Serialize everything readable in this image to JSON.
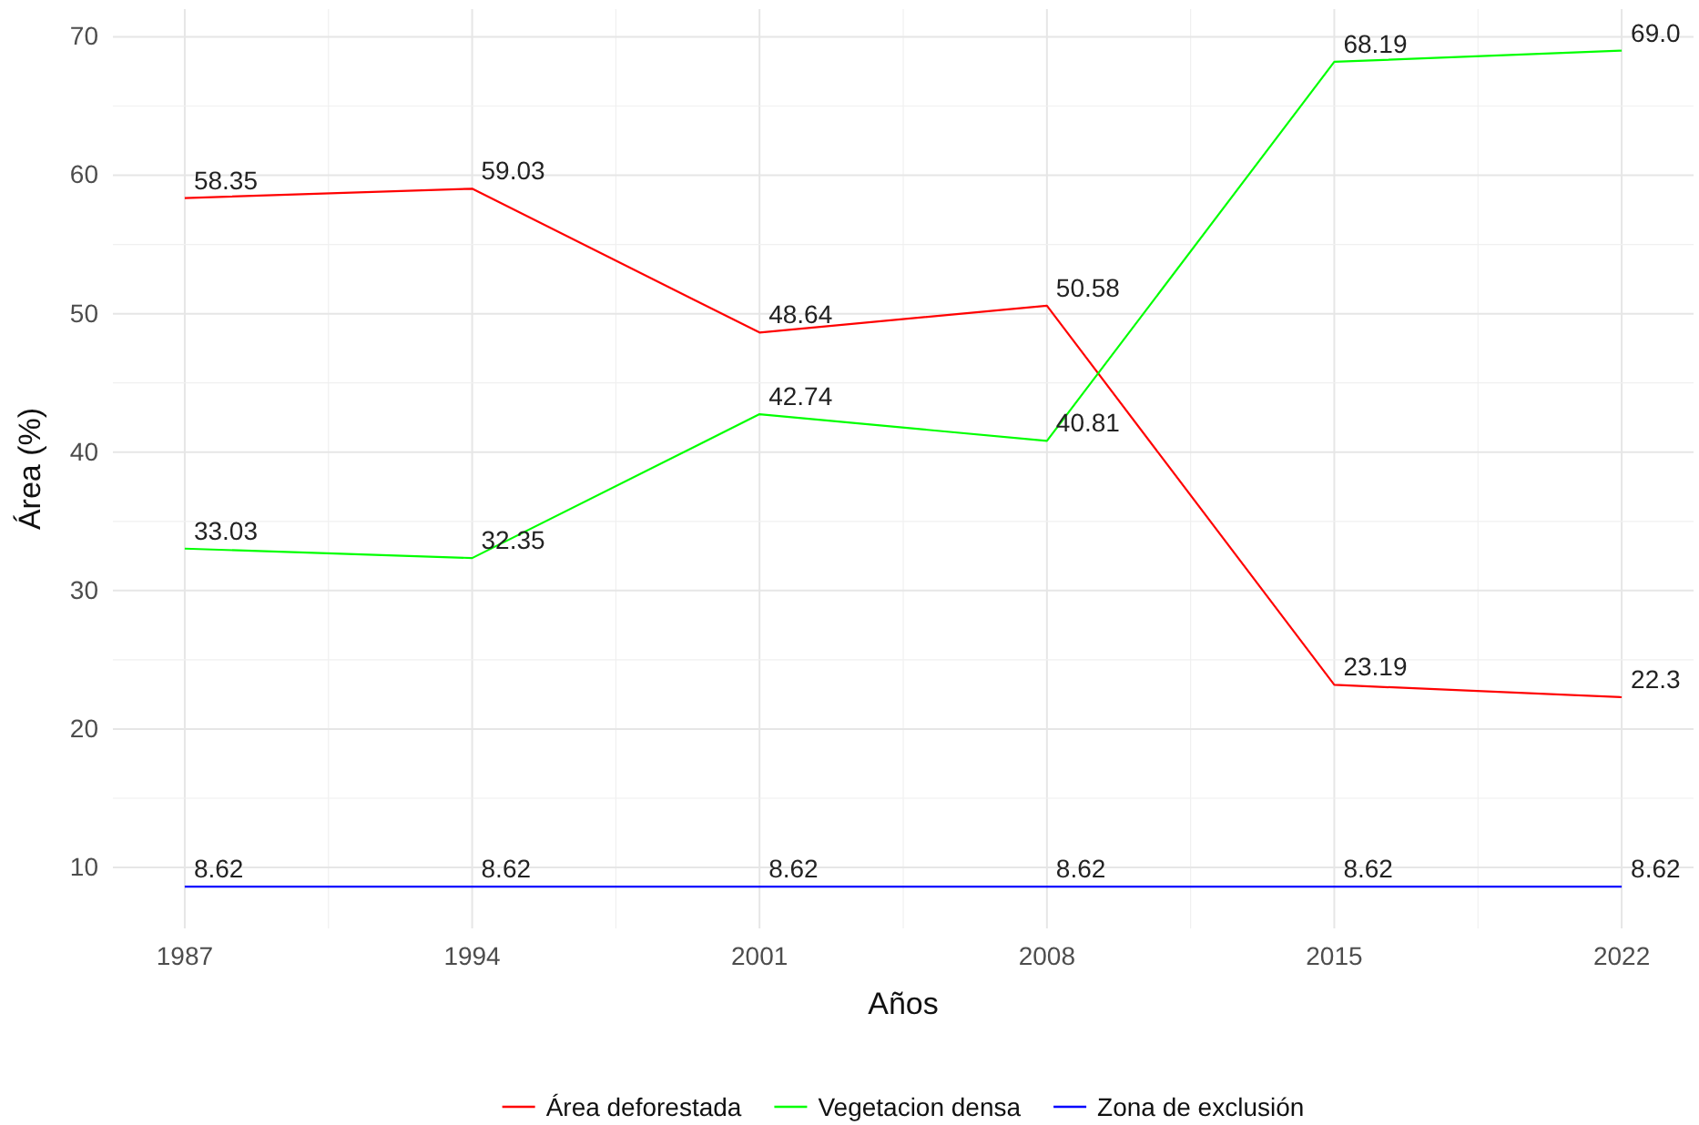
{
  "chart_data": {
    "type": "line",
    "xlabel": "Años",
    "ylabel": "Área (%)",
    "x": [
      1987,
      1994,
      2001,
      2008,
      2015,
      2022
    ],
    "series": [
      {
        "name": "Área deforestada",
        "color": "#ff0000",
        "values": [
          58.35,
          59.03,
          48.64,
          50.58,
          23.19,
          22.3
        ],
        "value_labels": [
          "58.35",
          "59.03",
          "48.64",
          "50.58",
          "23.19",
          "22.3"
        ]
      },
      {
        "name": "Vegetacion densa",
        "color": "#00ff00",
        "values": [
          33.03,
          32.35,
          42.74,
          40.81,
          68.19,
          69.0
        ],
        "value_labels": [
          "33.03",
          "32.35",
          "42.74",
          "40.81",
          "68.19",
          "69.0"
        ]
      },
      {
        "name": "Zona de exclusión",
        "color": "#0000ff",
        "values": [
          8.62,
          8.62,
          8.62,
          8.62,
          8.62,
          8.62
        ],
        "value_labels": [
          "8.62",
          "8.62",
          "8.62",
          "8.62",
          "8.62",
          "8.62"
        ]
      }
    ],
    "xlim": [
      1985.25,
      2023.75
    ],
    "xticks": [
      1987,
      1994,
      2001,
      2008,
      2015,
      2022
    ],
    "ylim": [
      5.6,
      72.0
    ],
    "yticks": [
      10,
      20,
      30,
      40,
      50,
      60,
      70
    ],
    "grid": true,
    "legend": "bottom",
    "marker": "none",
    "line_style": "solid"
  }
}
